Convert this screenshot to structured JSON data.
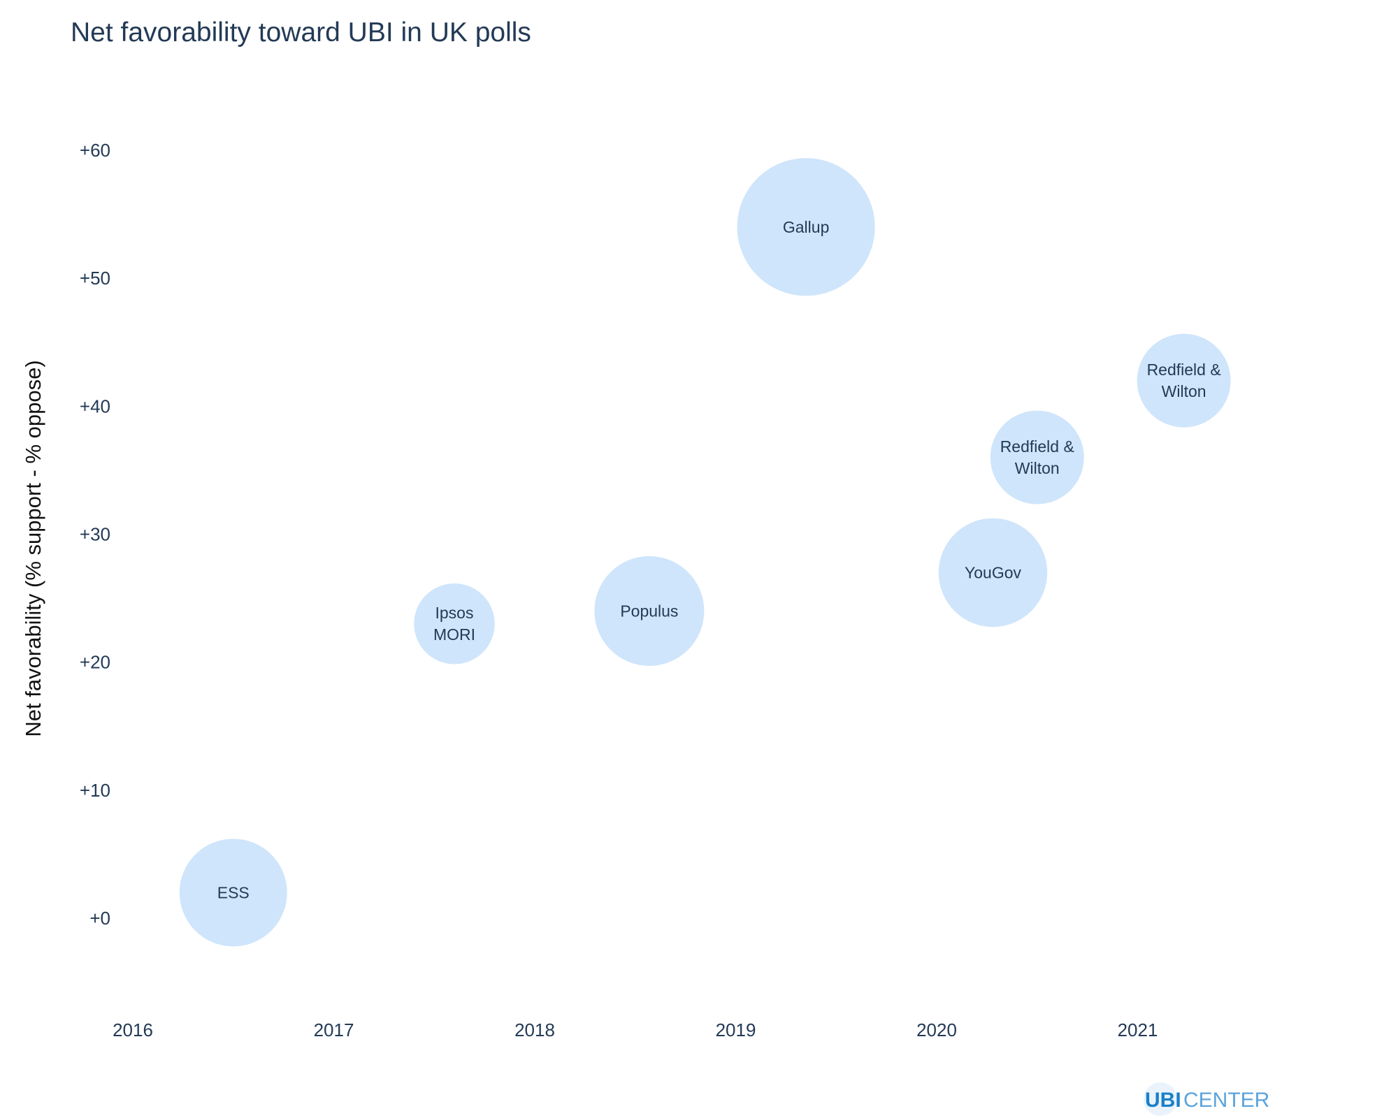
{
  "chart_data": {
    "type": "scatter",
    "title": "Net favorability toward UBI in UK polls",
    "ylabel": "Net favorability (% support - % oppose)",
    "xlabel": "",
    "xlim": [
      2016,
      2022
    ],
    "ylim": [
      -6,
      66
    ],
    "x_ticks": [
      "2016",
      "2017",
      "2018",
      "2019",
      "2020",
      "2021"
    ],
    "x_tick_values": [
      2016,
      2017,
      2018,
      2019,
      2020,
      2021
    ],
    "y_ticks": [
      "+0",
      "+10",
      "+20",
      "+30",
      "+40",
      "+50",
      "+60"
    ],
    "y_tick_values": [
      0,
      10,
      20,
      30,
      40,
      50,
      60
    ],
    "grid": false,
    "bubble_color": "#cfe5fb",
    "points": [
      {
        "label": [
          "ESS"
        ],
        "x": 2016.5,
        "y": 2,
        "size": 1.0
      },
      {
        "label": [
          "Ipsos",
          "MORI"
        ],
        "x": 2017.6,
        "y": 23,
        "size": 0.75
      },
      {
        "label": [
          "Populus"
        ],
        "x": 2018.57,
        "y": 24,
        "size": 1.02
      },
      {
        "label": [
          "Gallup"
        ],
        "x": 2019.35,
        "y": 54,
        "size": 1.28
      },
      {
        "label": [
          "YouGov"
        ],
        "x": 2020.28,
        "y": 27,
        "size": 1.01
      },
      {
        "label": [
          "Redfield &",
          "Wilton"
        ],
        "x": 2020.5,
        "y": 36,
        "size": 0.87
      },
      {
        "label": [
          "Redfield &",
          "Wilton"
        ],
        "x": 2021.23,
        "y": 42,
        "size": 0.87
      }
    ]
  },
  "logo": {
    "ubi": "UBI",
    "center": "CENTER",
    "ubi_color": "#1a80c8",
    "center_color": "#5aa3dc",
    "circle_color": "#eaf3fc"
  }
}
